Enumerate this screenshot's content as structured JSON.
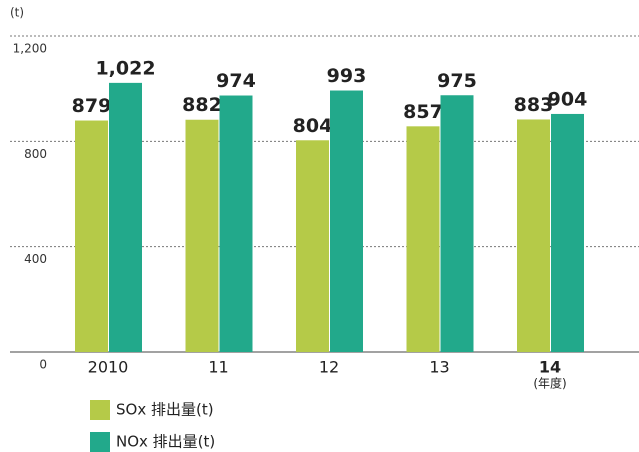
{
  "chart_data": {
    "type": "bar",
    "y_axis_label": "(t)",
    "x_axis_label": "(年度)",
    "categories": [
      "2010",
      "11",
      "12",
      "13",
      "14"
    ],
    "series": [
      {
        "name": "SOx 排出量(t)",
        "color": "#b5ca48",
        "values": [
          879,
          882,
          804,
          857,
          883
        ],
        "value_labels": [
          "879",
          "882",
          "804",
          "857",
          "883"
        ]
      },
      {
        "name": "NOx 排出量(t)",
        "color": "#22a98b",
        "values": [
          1022,
          974,
          993,
          975,
          904
        ],
        "value_labels": [
          "1,022",
          "974",
          "993",
          "975",
          "904"
        ]
      }
    ],
    "ylim": [
      0,
      1200
    ],
    "yticks": [
      0,
      400,
      800,
      {
        "value": 1200,
        "label": "1,200"
      }
    ],
    "grid": true
  }
}
